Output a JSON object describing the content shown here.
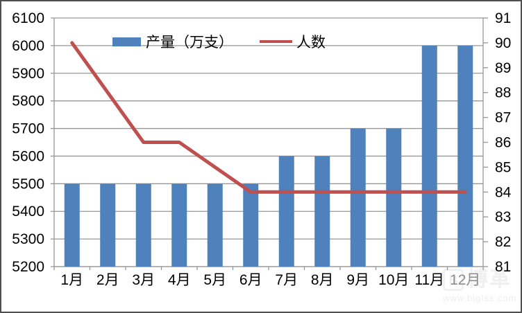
{
  "chart_data": {
    "type": "combo",
    "categories": [
      "1月",
      "2月",
      "3月",
      "4月",
      "5月",
      "6月",
      "7月",
      "8月",
      "9月",
      "10月",
      "11月",
      "12月"
    ],
    "series": [
      {
        "name": "产量（万支）",
        "type": "bar",
        "axis": "left",
        "color": "#4f81bd",
        "values": [
          5500,
          5500,
          5500,
          5500,
          5500,
          5500,
          5600,
          5600,
          5700,
          5700,
          6000,
          6000
        ]
      },
      {
        "name": "人数",
        "type": "line",
        "axis": "right",
        "color": "#c0504d",
        "values": [
          90,
          88,
          86,
          86,
          85,
          84,
          84,
          84,
          84,
          84,
          84,
          84
        ]
      }
    ],
    "left_axis": {
      "min": 5200,
      "max": 6100,
      "step": 100,
      "tick_labels": [
        "6100",
        "6000",
        "5900",
        "5800",
        "5700",
        "5600",
        "5500",
        "5400",
        "5300",
        "5200"
      ]
    },
    "right_axis": {
      "min": 81,
      "max": 91,
      "step": 1,
      "tick_labels": [
        "91",
        "90",
        "89",
        "88",
        "87",
        "86",
        "85",
        "84",
        "83",
        "82",
        "81"
      ]
    },
    "grid": true,
    "legend_position": "top-inside"
  },
  "watermark": {
    "logo_text": "B",
    "brand": "博革",
    "url": "www.biglss.com"
  },
  "colors": {
    "bar": "#4f81bd",
    "line": "#c0504d",
    "grid": "#969696",
    "axis": "#969696",
    "text": "#000000",
    "muted_label": "#8c8c8c",
    "watermark": "#f0f0f0",
    "frame_border": "#4f4f4f"
  }
}
